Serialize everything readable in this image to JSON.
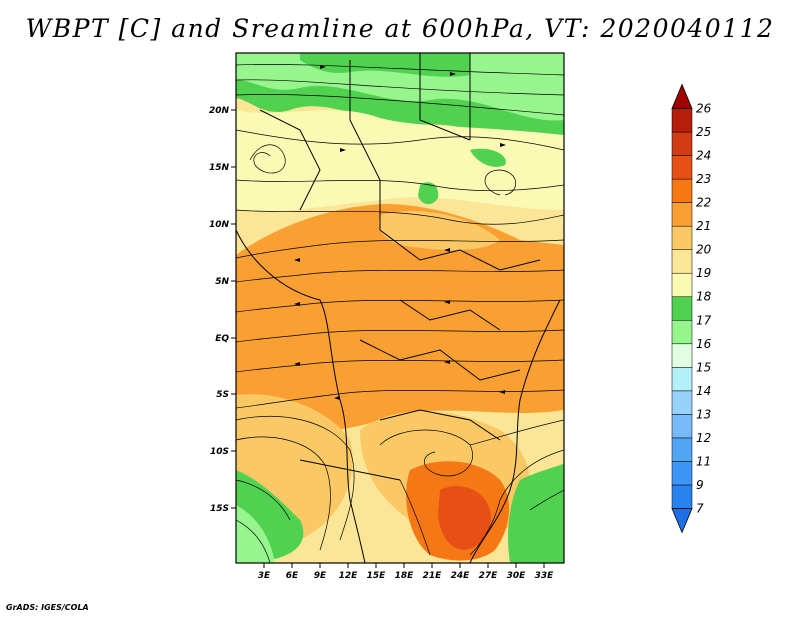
{
  "title": "WBPT [C] and Sreamline at 600hPa, VT: 2020040112",
  "credit": "GrADS: IGES/COLA",
  "map": {
    "lon_labels": [
      "3E",
      "6E",
      "9E",
      "12E",
      "15E",
      "18E",
      "21E",
      "24E",
      "27E",
      "30E",
      "33E"
    ],
    "lat_labels": [
      "20N",
      "15N",
      "10N",
      "5N",
      "EQ",
      "5S",
      "10S",
      "15S"
    ],
    "variable": "Wet-bulb potential temperature",
    "units": "C",
    "level": "600hPa",
    "valid_time": "2020040112"
  },
  "colorbar": {
    "labels": [
      "7",
      "9",
      "11",
      "12",
      "13",
      "14",
      "15",
      "16",
      "17",
      "18",
      "19",
      "20",
      "21",
      "22",
      "23",
      "24",
      "25",
      "26"
    ],
    "colors": [
      "#1e6ee6",
      "#2882f0",
      "#3c96f5",
      "#50a5f5",
      "#78b9fa",
      "#96d2fa",
      "#b4f0fa",
      "#e1ffe1",
      "#96f58c",
      "#50d250",
      "#fafab4",
      "#fae696",
      "#fac864",
      "#faa032",
      "#f57814",
      "#e65014",
      "#d23c14",
      "#b41e0a",
      "#a00000"
    ]
  }
}
